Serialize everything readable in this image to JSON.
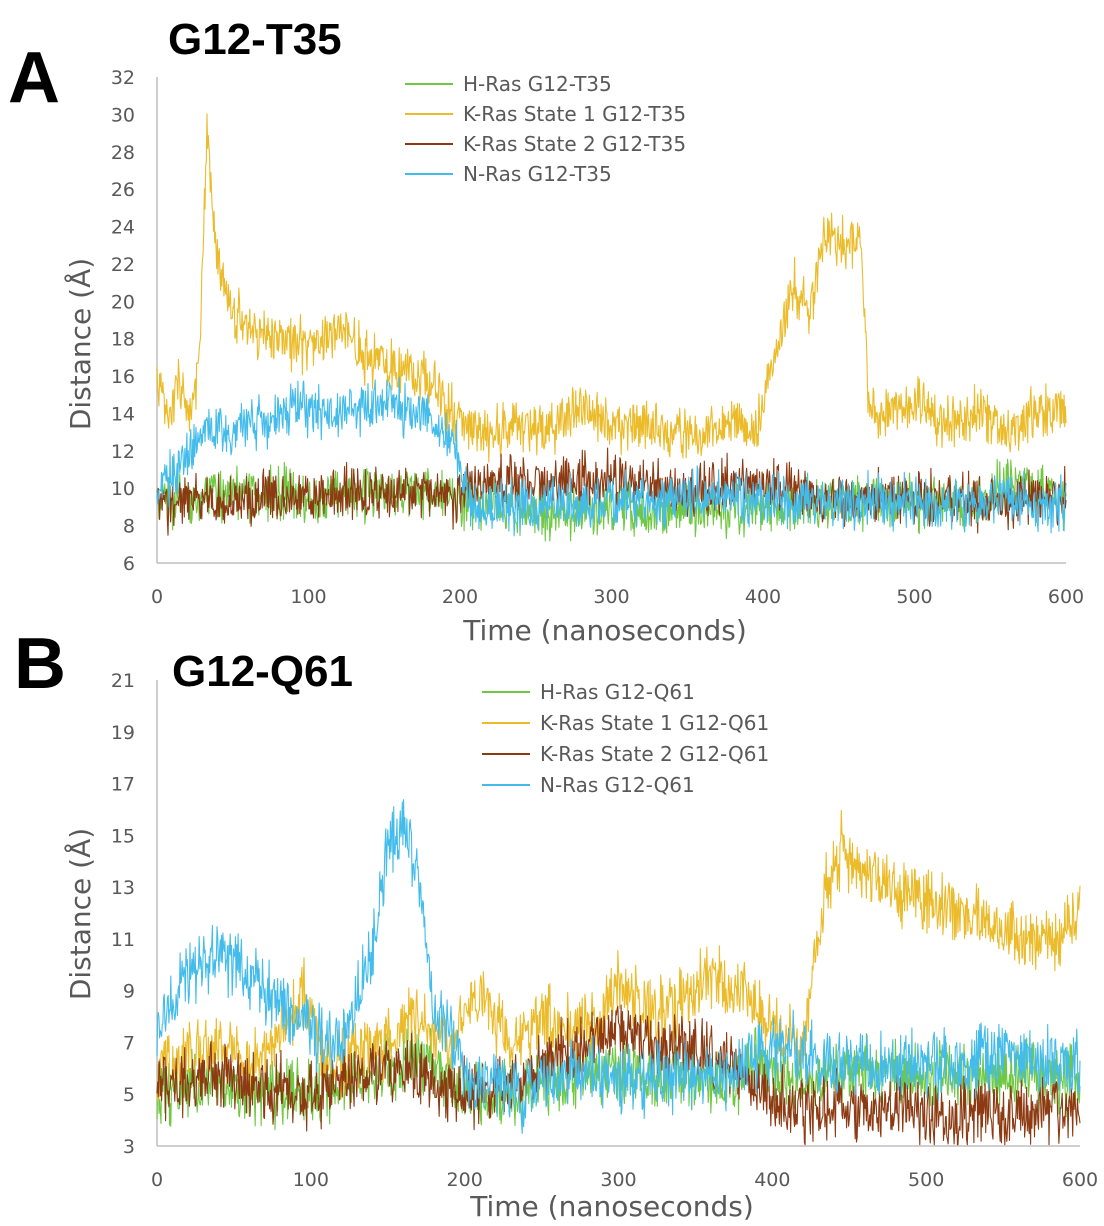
{
  "chart_data": [
    {
      "type": "line",
      "panel": "A",
      "title": "G12-T35",
      "xlabel": "Time (nanoseconds)",
      "ylabel": "Distance (Å)",
      "xlim": [
        0,
        600
      ],
      "ylim": [
        6,
        32
      ],
      "xticks": [
        0,
        100,
        200,
        300,
        400,
        500,
        600
      ],
      "yticks": [
        6,
        8,
        10,
        12,
        14,
        16,
        18,
        20,
        22,
        24,
        26,
        28,
        30,
        32
      ],
      "grid": false,
      "legend_position": "top-center",
      "series": [
        {
          "name": "H-Ras G12-T35",
          "color": "#70c842",
          "x": [
            0,
            25,
            50,
            75,
            100,
            125,
            150,
            175,
            200,
            225,
            250,
            275,
            300,
            325,
            350,
            375,
            400,
            425,
            450,
            475,
            500,
            525,
            550,
            565,
            575,
            590,
            600
          ],
          "y": [
            9.2,
            9.4,
            9.9,
            9.7,
            9.6,
            9.7,
            9.8,
            9.7,
            9.5,
            9.0,
            8.8,
            8.6,
            8.7,
            8.8,
            8.9,
            8.8,
            8.9,
            9.0,
            9.2,
            9.3,
            9.2,
            9.3,
            9.5,
            10.8,
            10.2,
            9.6,
            9.4
          ]
        },
        {
          "name": "K-Ras State 1 G12-T35",
          "color": "#ebbb2a",
          "x": [
            0,
            8,
            15,
            22,
            28,
            33,
            40,
            50,
            60,
            80,
            100,
            120,
            140,
            160,
            180,
            190,
            200,
            220,
            240,
            260,
            280,
            300,
            320,
            340,
            360,
            380,
            395,
            410,
            420,
            430,
            440,
            455,
            465,
            470,
            480,
            500,
            520,
            540,
            560,
            580,
            600
          ],
          "y": [
            16.0,
            13.5,
            16.0,
            13.5,
            17.0,
            28.5,
            22.0,
            19.5,
            18.5,
            18.0,
            17.5,
            18.5,
            17.0,
            16.5,
            16.0,
            14.5,
            13.5,
            13.0,
            13.5,
            13.0,
            14.5,
            13.0,
            13.5,
            13.0,
            12.8,
            13.5,
            13.0,
            17.5,
            21.0,
            19.0,
            23.5,
            23.0,
            23.5,
            14.0,
            14.0,
            14.5,
            13.5,
            14.0,
            13.0,
            14.0,
            14.5
          ]
        },
        {
          "name": "K-Ras State 2 G12-T35",
          "color": "#8c3a12",
          "x": [
            0,
            25,
            50,
            75,
            100,
            125,
            150,
            175,
            195,
            205,
            225,
            250,
            275,
            300,
            325,
            350,
            375,
            400,
            425,
            450,
            475,
            500,
            525,
            550,
            575,
            600
          ],
          "y": [
            9.0,
            9.4,
            9.2,
            9.6,
            9.5,
            9.7,
            9.6,
            9.8,
            9.5,
            10.2,
            10.3,
            10.2,
            10.4,
            10.5,
            10.0,
            10.0,
            10.2,
            10.3,
            9.6,
            9.2,
            9.5,
            9.6,
            9.4,
            9.2,
            9.5,
            9.6
          ]
        },
        {
          "name": "N-Ras G12-T35",
          "color": "#44bceb",
          "x": [
            0,
            15,
            30,
            50,
            70,
            90,
            110,
            130,
            150,
            170,
            190,
            198,
            205,
            230,
            260,
            290,
            320,
            350,
            380,
            400,
            425,
            450,
            475,
            500,
            525,
            550,
            565,
            580,
            600
          ],
          "y": [
            9.5,
            11.5,
            12.8,
            13.0,
            13.5,
            14.5,
            14.0,
            14.2,
            14.5,
            14.3,
            13.0,
            12.0,
            9.3,
            9.0,
            9.1,
            9.3,
            9.4,
            9.6,
            9.8,
            9.4,
            9.3,
            9.2,
            9.4,
            9.3,
            9.1,
            9.3,
            9.5,
            9.2,
            9.2
          ]
        }
      ]
    },
    {
      "type": "line",
      "panel": "B",
      "title": "G12-Q61",
      "xlabel": "Time (nanoseconds)",
      "ylabel": "Distance (Å)",
      "xlim": [
        0,
        600
      ],
      "ylim": [
        3,
        21
      ],
      "xticks": [
        0,
        100,
        200,
        300,
        400,
        500,
        600
      ],
      "yticks": [
        3,
        5,
        7,
        9,
        11,
        13,
        15,
        17,
        19,
        21
      ],
      "grid": false,
      "legend_position": "top-center",
      "series": [
        {
          "name": "H-Ras G12-Q61",
          "color": "#70c842",
          "x": [
            0,
            25,
            50,
            75,
            100,
            125,
            150,
            175,
            200,
            225,
            250,
            275,
            300,
            325,
            350,
            375,
            390,
            400,
            425,
            450,
            475,
            500,
            525,
            550,
            575,
            600
          ],
          "y": [
            5.0,
            5.5,
            5.2,
            5.0,
            5.2,
            5.5,
            6.0,
            6.5,
            5.0,
            5.0,
            5.5,
            5.8,
            6.0,
            5.8,
            5.5,
            5.5,
            6.5,
            5.8,
            5.5,
            6.0,
            5.8,
            5.6,
            5.8,
            5.6,
            5.8,
            5.5
          ]
        },
        {
          "name": "K-Ras State 1 G12-Q61",
          "color": "#ebbb2a",
          "x": [
            0,
            20,
            40,
            60,
            80,
            95,
            110,
            130,
            150,
            170,
            190,
            210,
            230,
            250,
            270,
            290,
            300,
            320,
            340,
            360,
            380,
            400,
            420,
            435,
            445,
            460,
            480,
            500,
            520,
            540,
            560,
            580,
            600
          ],
          "y": [
            6.0,
            6.5,
            7.0,
            6.0,
            7.5,
            9.0,
            6.0,
            6.5,
            7.0,
            8.0,
            7.0,
            9.0,
            7.0,
            8.0,
            7.5,
            8.0,
            9.5,
            8.0,
            8.5,
            9.5,
            9.0,
            7.5,
            7.0,
            13.0,
            14.5,
            13.5,
            13.0,
            12.5,
            12.0,
            11.5,
            11.0,
            11.0,
            12.0
          ]
        },
        {
          "name": "K-Ras State 2 G12-Q61",
          "color": "#8c3a12",
          "x": [
            0,
            20,
            40,
            60,
            80,
            100,
            120,
            140,
            160,
            180,
            200,
            220,
            240,
            260,
            280,
            300,
            320,
            340,
            360,
            380,
            400,
            420,
            440,
            460,
            480,
            500,
            520,
            540,
            560,
            580,
            600
          ],
          "y": [
            5.5,
            5.3,
            5.8,
            5.5,
            5.2,
            5.0,
            5.5,
            6.0,
            6.0,
            5.5,
            5.0,
            5.2,
            5.5,
            6.5,
            7.0,
            7.5,
            7.0,
            6.8,
            6.5,
            5.8,
            4.8,
            4.5,
            4.5,
            4.3,
            4.4,
            4.3,
            4.2,
            4.4,
            4.3,
            4.2,
            4.3
          ]
        },
        {
          "name": "N-Ras G12-Q61",
          "color": "#44bceb",
          "x": [
            0,
            20,
            40,
            60,
            80,
            100,
            120,
            140,
            150,
            160,
            170,
            180,
            200,
            220,
            240,
            260,
            280,
            300,
            320,
            340,
            360,
            380,
            400,
            420,
            440,
            460,
            480,
            500,
            520,
            540,
            560,
            580,
            600
          ],
          "y": [
            7.5,
            9.5,
            10.5,
            9.5,
            8.5,
            7.5,
            7.0,
            10.5,
            14.5,
            15.5,
            13.5,
            8.5,
            6.0,
            5.5,
            5.0,
            5.5,
            6.0,
            5.5,
            5.5,
            5.8,
            5.6,
            6.0,
            7.0,
            6.5,
            6.0,
            6.2,
            6.0,
            6.2,
            6.0,
            6.5,
            6.3,
            6.2,
            6.0
          ]
        }
      ]
    }
  ]
}
